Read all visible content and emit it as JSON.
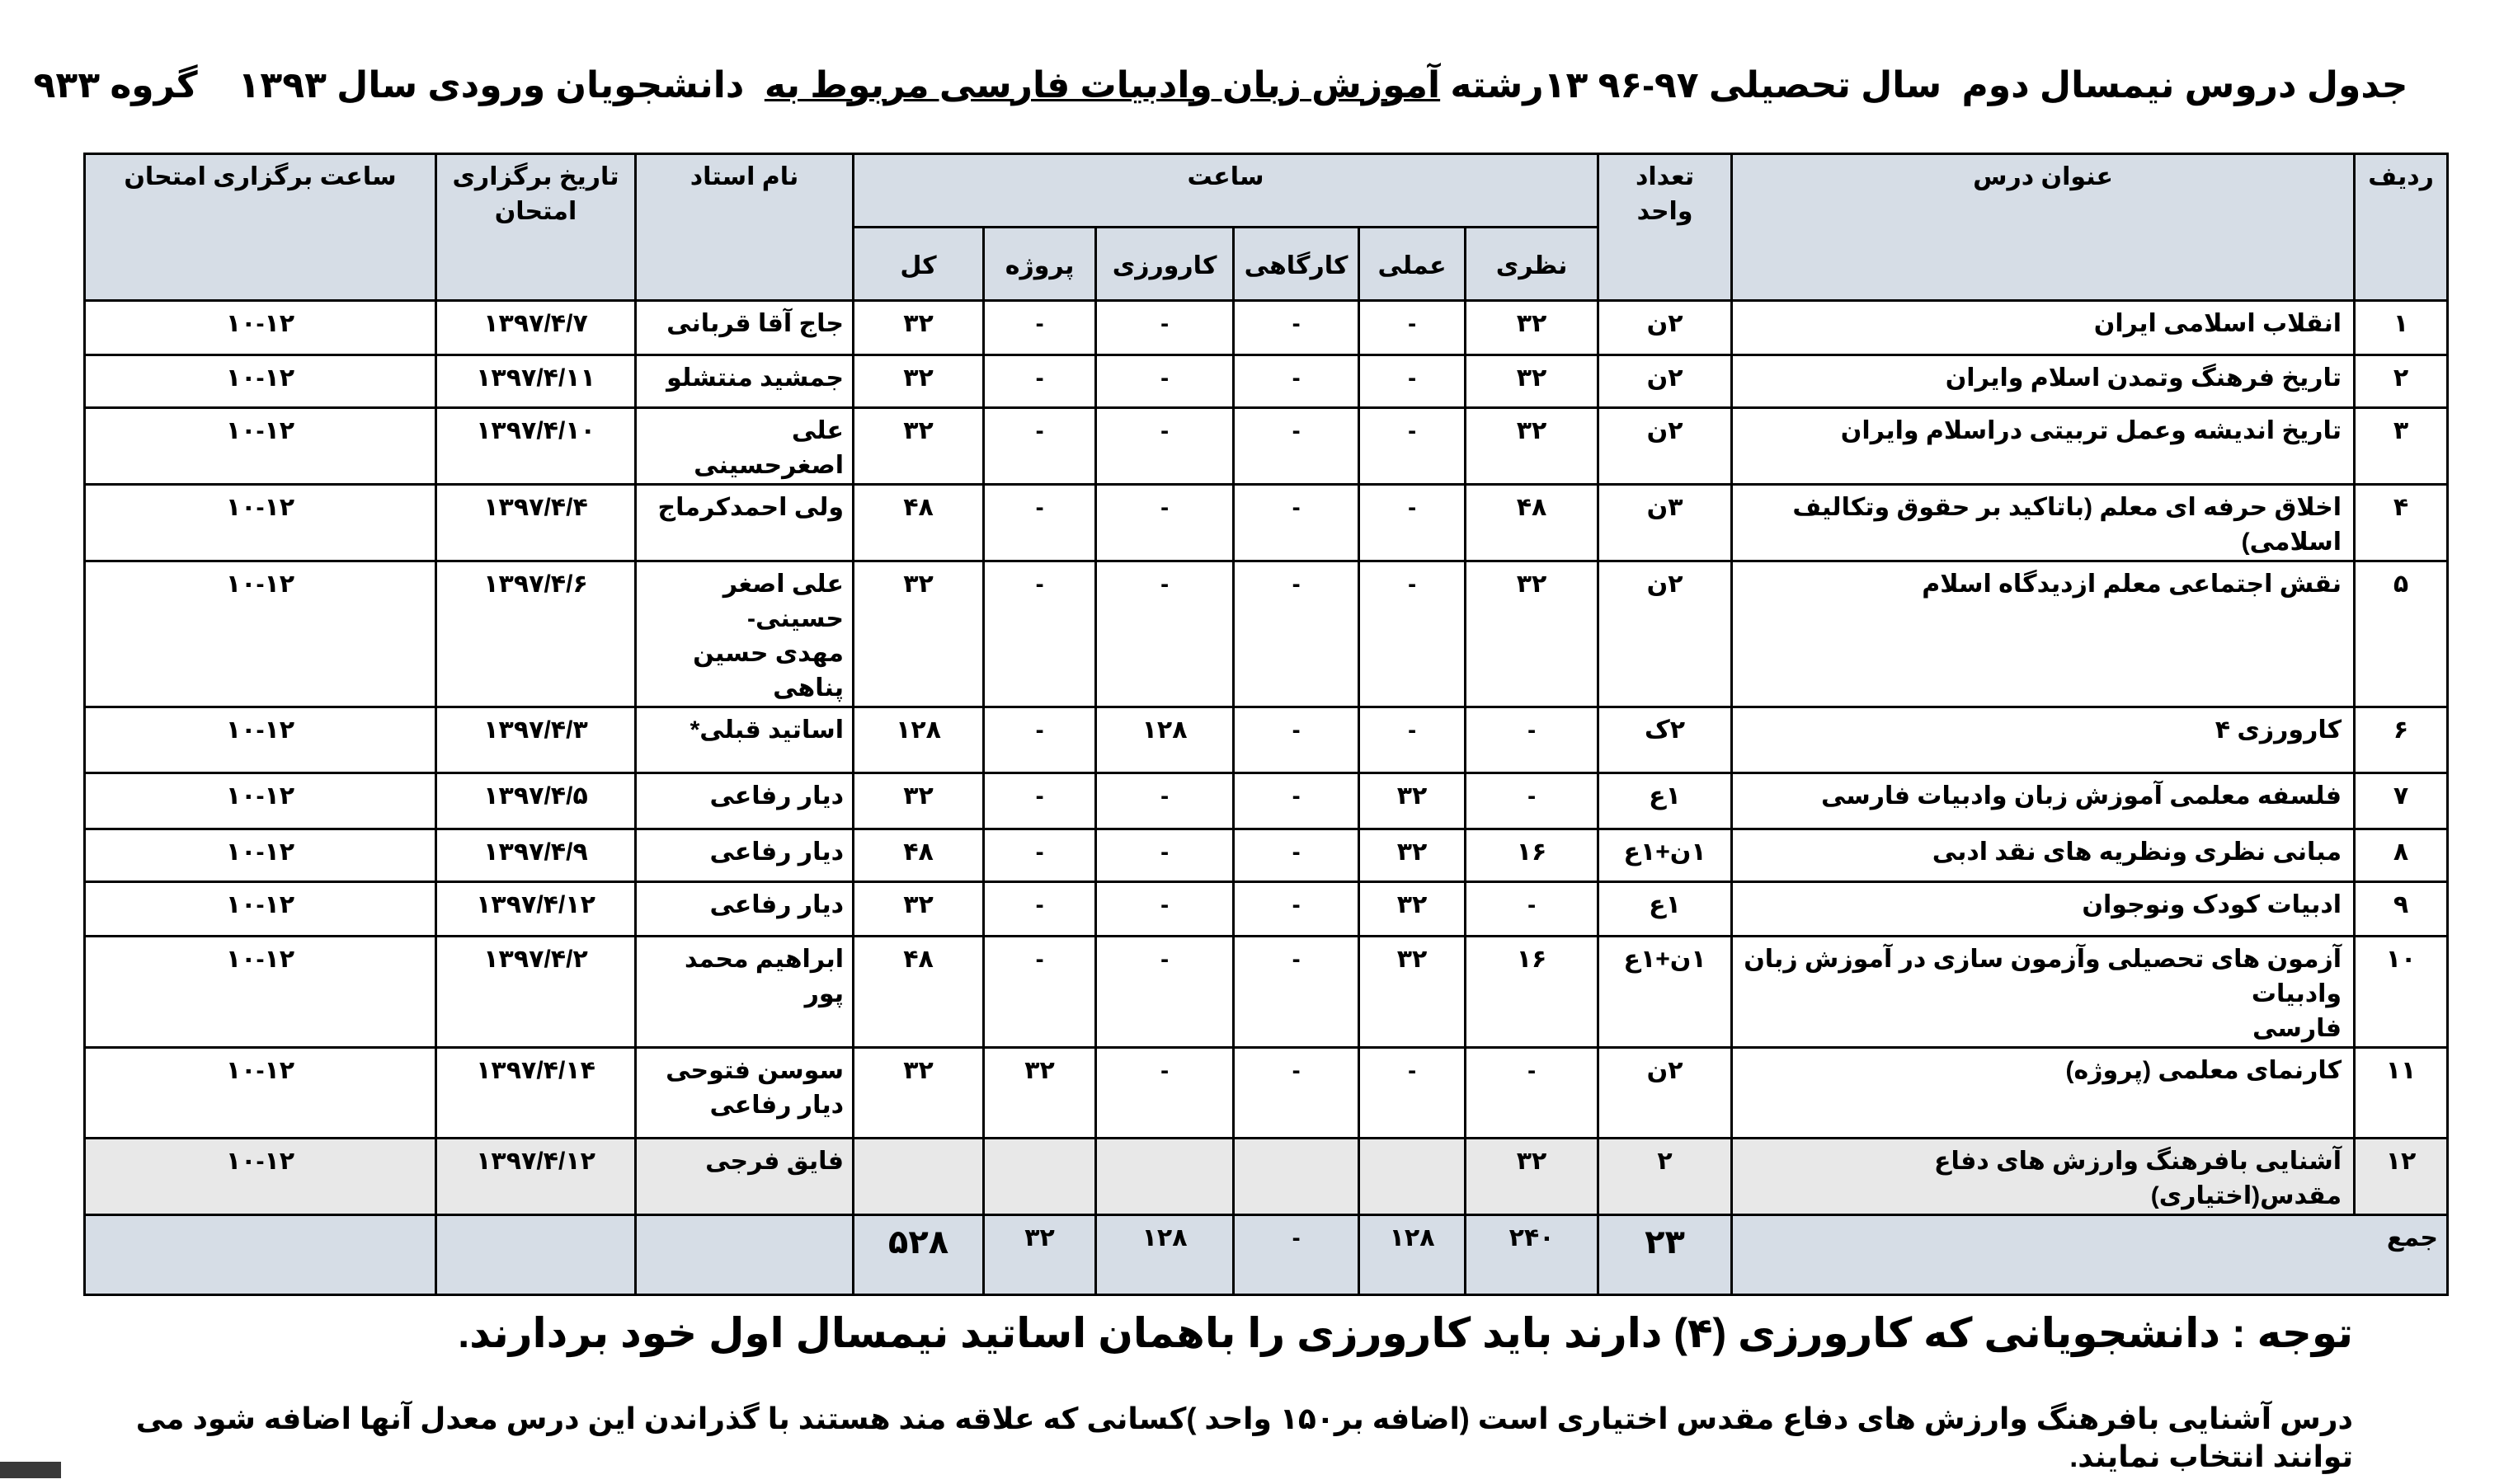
{
  "title": {
    "part1": "جدول دروس نیمسال دوم  سال تحصیلی ۹۷-۹۶ ۱۳رشته ",
    "underlined": "آموزش زبان وادبیات فارسی مربوط به",
    "part2": "  دانشجویان ورودی سال ۱۳۹۳    گروه ۹۳۳"
  },
  "headers": {
    "row": "ردیف",
    "course": "عنوان درس",
    "units": "تعداد\nواحد",
    "hours": "ساعت",
    "theory": "نظری",
    "practical": "عملی",
    "workshop": "کارگاهی",
    "internship": "کارورزی",
    "project": "پروژه",
    "total": "کل",
    "instructor": "نام استاد",
    "exam_date": "تاریخ برگزاری\nامتحان",
    "exam_time": "ساعت برگزاری امتحان"
  },
  "rows": [
    {
      "no": "۱",
      "course": "انقلاب اسلامی ایران",
      "units": "۲ن",
      "theory": "۳۲",
      "practical": "-",
      "workshop": "-",
      "internship": "-",
      "project": "-",
      "total": "۳۲",
      "instructor": "جاج آقا قربانی",
      "exam_date": "۱۳۹۷/۴/۷",
      "exam_time": "۱۰-۱۲"
    },
    {
      "no": "۲",
      "course": "تاریخ فرهنگ وتمدن  اسلام وایران",
      "units": "۲ن",
      "theory": "۳۲",
      "practical": "-",
      "workshop": "-",
      "internship": "-",
      "project": "-",
      "total": "۳۲",
      "instructor": "جمشید منتشلو",
      "exam_date": "۱۳۹۷/۴/۱۱",
      "exam_time": "۱۰-۱۲"
    },
    {
      "no": "۳",
      "course": "تاریخ اندیشه وعمل تربیتی دراسلام وایران",
      "units": "۲ن",
      "theory": "۳۲",
      "practical": "-",
      "workshop": "-",
      "internship": "-",
      "project": "-",
      "total": "۳۲",
      "instructor": "علی اصغرحسینی",
      "exam_date": "۱۳۹۷/۴/۱۰",
      "exam_time": "۱۰-۱۲"
    },
    {
      "no": "۴",
      "course": "اخلاق حرفه ای معلم (باتاکید بر حقوق وتکالیف اسلامی)",
      "units": "۳ن",
      "theory": "۴۸",
      "practical": "-",
      "workshop": "-",
      "internship": "-",
      "project": "-",
      "total": "۴۸",
      "instructor": "ولی احمدکرماج",
      "exam_date": "۱۳۹۷/۴/۴",
      "exam_time": "۱۰-۱۲"
    },
    {
      "no": "۵",
      "course": "نقش اجتماعی معلم ازدیدگاه اسلام",
      "units": "۲ن",
      "theory": "۳۲",
      "practical": "-",
      "workshop": "-",
      "internship": "-",
      "project": "-",
      "total": "۳۲",
      "instructor": "علی اصغر حسینی-\nمهدی حسین پناهی",
      "exam_date": "۱۳۹۷/۴/۶",
      "exam_time": "۱۰-۱۲"
    },
    {
      "no": "۶",
      "course": "کارورزی ۴",
      "units": "۲ک",
      "theory": "-",
      "practical": "-",
      "workshop": "-",
      "internship": "۱۲۸",
      "project": "-",
      "total": "۱۲۸",
      "instructor": "اساتید قبلی*",
      "exam_date": "۱۳۹۷/۴/۳",
      "exam_time": "۱۰-۱۲"
    },
    {
      "no": "۷",
      "course": "فلسفه معلمی آموزش زبان وادبیات فارسی",
      "units": "۱ع",
      "theory": "-",
      "practical": "۳۲",
      "workshop": "-",
      "internship": "-",
      "project": "-",
      "total": "۳۲",
      "instructor": "دیار رفاعی",
      "exam_date": "۱۳۹۷/۴/۵",
      "exam_time": "۱۰-۱۲"
    },
    {
      "no": "۸",
      "course": "مبانی نظری  ونظریه های نقد ادبی",
      "units": "۱ن+۱ع",
      "theory": "۱۶",
      "practical": "۳۲",
      "workshop": "-",
      "internship": "-",
      "project": "-",
      "total": "۴۸",
      "instructor": "دیار رفاعی",
      "exam_date": "۱۳۹۷/۴/۹",
      "exam_time": "۱۰-۱۲"
    },
    {
      "no": "۹",
      "course": "ادبیات کودک ونوجوان",
      "units": "۱ع",
      "theory": "-",
      "practical": "۳۲",
      "workshop": "-",
      "internship": "-",
      "project": "-",
      "total": "۳۲",
      "instructor": "دیار رفاعی",
      "exam_date": "۱۳۹۷/۴/۱۲",
      "exam_time": "۱۰-۱۲"
    },
    {
      "no": "۱۰",
      "course": "آزمون های تحصیلی  وآزمون سازی در آموزش زبان وادبیات\nفارسی",
      "units": "۱ن+۱ع",
      "theory": "۱۶",
      "practical": "۳۲",
      "workshop": "-",
      "internship": "-",
      "project": "-",
      "total": "۴۸",
      "instructor": "ابراهیم محمد پور",
      "exam_date": "۱۳۹۷/۴/۲",
      "exam_time": "۱۰-۱۲"
    },
    {
      "no": "۱۱",
      "course": "کارنمای معلمی (پروژه)",
      "units": "۲ن",
      "theory": "-",
      "practical": "-",
      "workshop": "-",
      "internship": "-",
      "project": "۳۲",
      "total": "۳۲",
      "instructor": "سوسن فتوحی\nدیار   رفاعی",
      "exam_date": "۱۳۹۷/۴/۱۴",
      "exam_time": "۱۰-۱۲"
    },
    {
      "no": "۱۲",
      "course": "آشنایی بافرهنگ وارزش های دفاع مقدس(اختیاری)",
      "units": "۲",
      "theory": "۳۲",
      "practical": "",
      "workshop": "",
      "internship": "",
      "project": "",
      "total": "",
      "instructor": "فایق   فرجی",
      "exam_date": "۱۳۹۷/۴/۱۲",
      "exam_time": "۱۰-۱۲",
      "elective": true
    }
  ],
  "totals": {
    "label": "جمع",
    "units": "۲۳",
    "theory": "۲۴۰",
    "practical": "۱۲۸",
    "workshop": "-",
    "internship": "۱۲۸",
    "project": "۳۲",
    "total": "۵۲۸"
  },
  "notes": {
    "note1": "توجه : دانشجویانی که کارورزی (۴) دارند باید کارورزی را باهمان اساتید نیمسال اول خود بردارند.",
    "note2": "درس آشنایی بافرهنگ وارزش های دفاع مقدس اختیاری است (اضافه بر۱۵۰ واحد )کسانی که علاقه مند هستند با گذراندن این درس معدل آنها اضافه شود می توانند انتخاب نمایند."
  },
  "colors": {
    "header_bg": "#d6dde6",
    "elective_bg": "#e8e8e8",
    "border": "#000000"
  }
}
